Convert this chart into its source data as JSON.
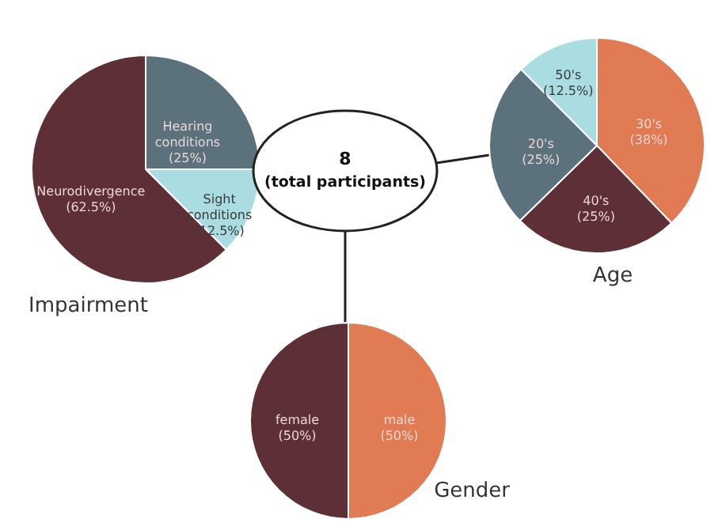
{
  "chart_data": [
    {
      "type": "pie",
      "title": "Impairment",
      "categories": [
        "Hearing conditions",
        "Sight conditions",
        "Neurodivergence"
      ],
      "values": [
        25,
        12.5,
        62.5
      ],
      "colors": [
        "#5b717c",
        "#a9dde2",
        "#5e2f36"
      ],
      "value_labels": [
        "(25%)",
        "(12.5%)",
        "(62.5%)"
      ]
    },
    {
      "type": "other",
      "title": "8",
      "subtitle": "(total participants)"
    },
    {
      "type": "pie",
      "title": "Age",
      "categories": [
        "30's",
        "40's",
        "20's",
        "50's"
      ],
      "values": [
        38,
        25,
        25,
        12.5
      ],
      "colors": [
        "#e07b53",
        "#5e2f36",
        "#5b717c",
        "#a9dde2"
      ],
      "value_labels": [
        "(38%)",
        "(25%)",
        "(25%)",
        "(12.5%)"
      ]
    },
    {
      "type": "pie",
      "title": "Gender",
      "categories": [
        "male",
        "female"
      ],
      "values": [
        50,
        50
      ],
      "colors": [
        "#e07b53",
        "#5e2f36"
      ],
      "value_labels": [
        "(50%)",
        "(50%)"
      ]
    }
  ]
}
